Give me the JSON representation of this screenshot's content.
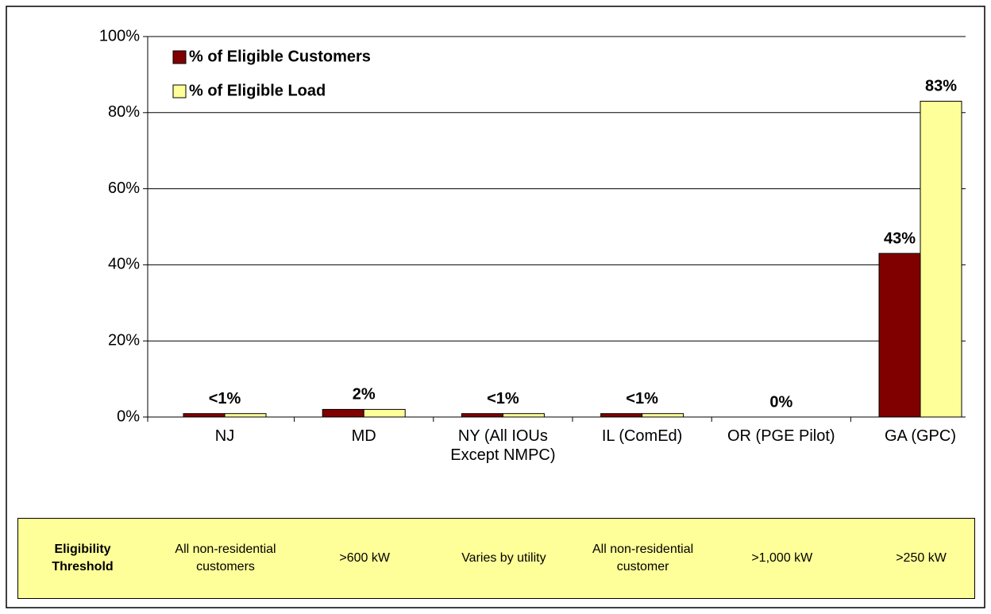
{
  "chart_data": {
    "type": "bar",
    "categories": [
      "NJ",
      "MD",
      "NY (All IOUs Except NMPC)",
      "IL (ComEd)",
      "OR (PGE Pilot)",
      "GA (GPC)"
    ],
    "series": [
      {
        "name": "% of Eligible Customers",
        "color": "#800000",
        "values": [
          0.9,
          2,
          0.9,
          0.9,
          0,
          43
        ],
        "value_labels": [
          null,
          null,
          null,
          null,
          null,
          "43%"
        ]
      },
      {
        "name": "% of Eligible Load",
        "color": "#ffff99",
        "values": [
          0.9,
          2,
          0.9,
          0.9,
          0,
          83
        ],
        "value_labels": [
          "<1%",
          "2%",
          "<1%",
          "<1%",
          "0%",
          "83%"
        ]
      }
    ],
    "ylim": [
      0,
      100
    ],
    "yticks": [
      {
        "value": 0,
        "label": "0%"
      },
      {
        "value": 20,
        "label": "20%"
      },
      {
        "value": 40,
        "label": "40%"
      },
      {
        "value": 60,
        "label": "60%"
      },
      {
        "value": 80,
        "label": "80%"
      },
      {
        "value": 100,
        "label": "100%"
      }
    ],
    "grid": true,
    "legend": "top-left"
  },
  "table": {
    "header": "Eligibility Threshold",
    "cells": [
      "All non-residential customers",
      ">600 kW",
      "Varies by utility",
      "All non-residential customer",
      ">1,000 kW",
      ">250 kW"
    ]
  }
}
